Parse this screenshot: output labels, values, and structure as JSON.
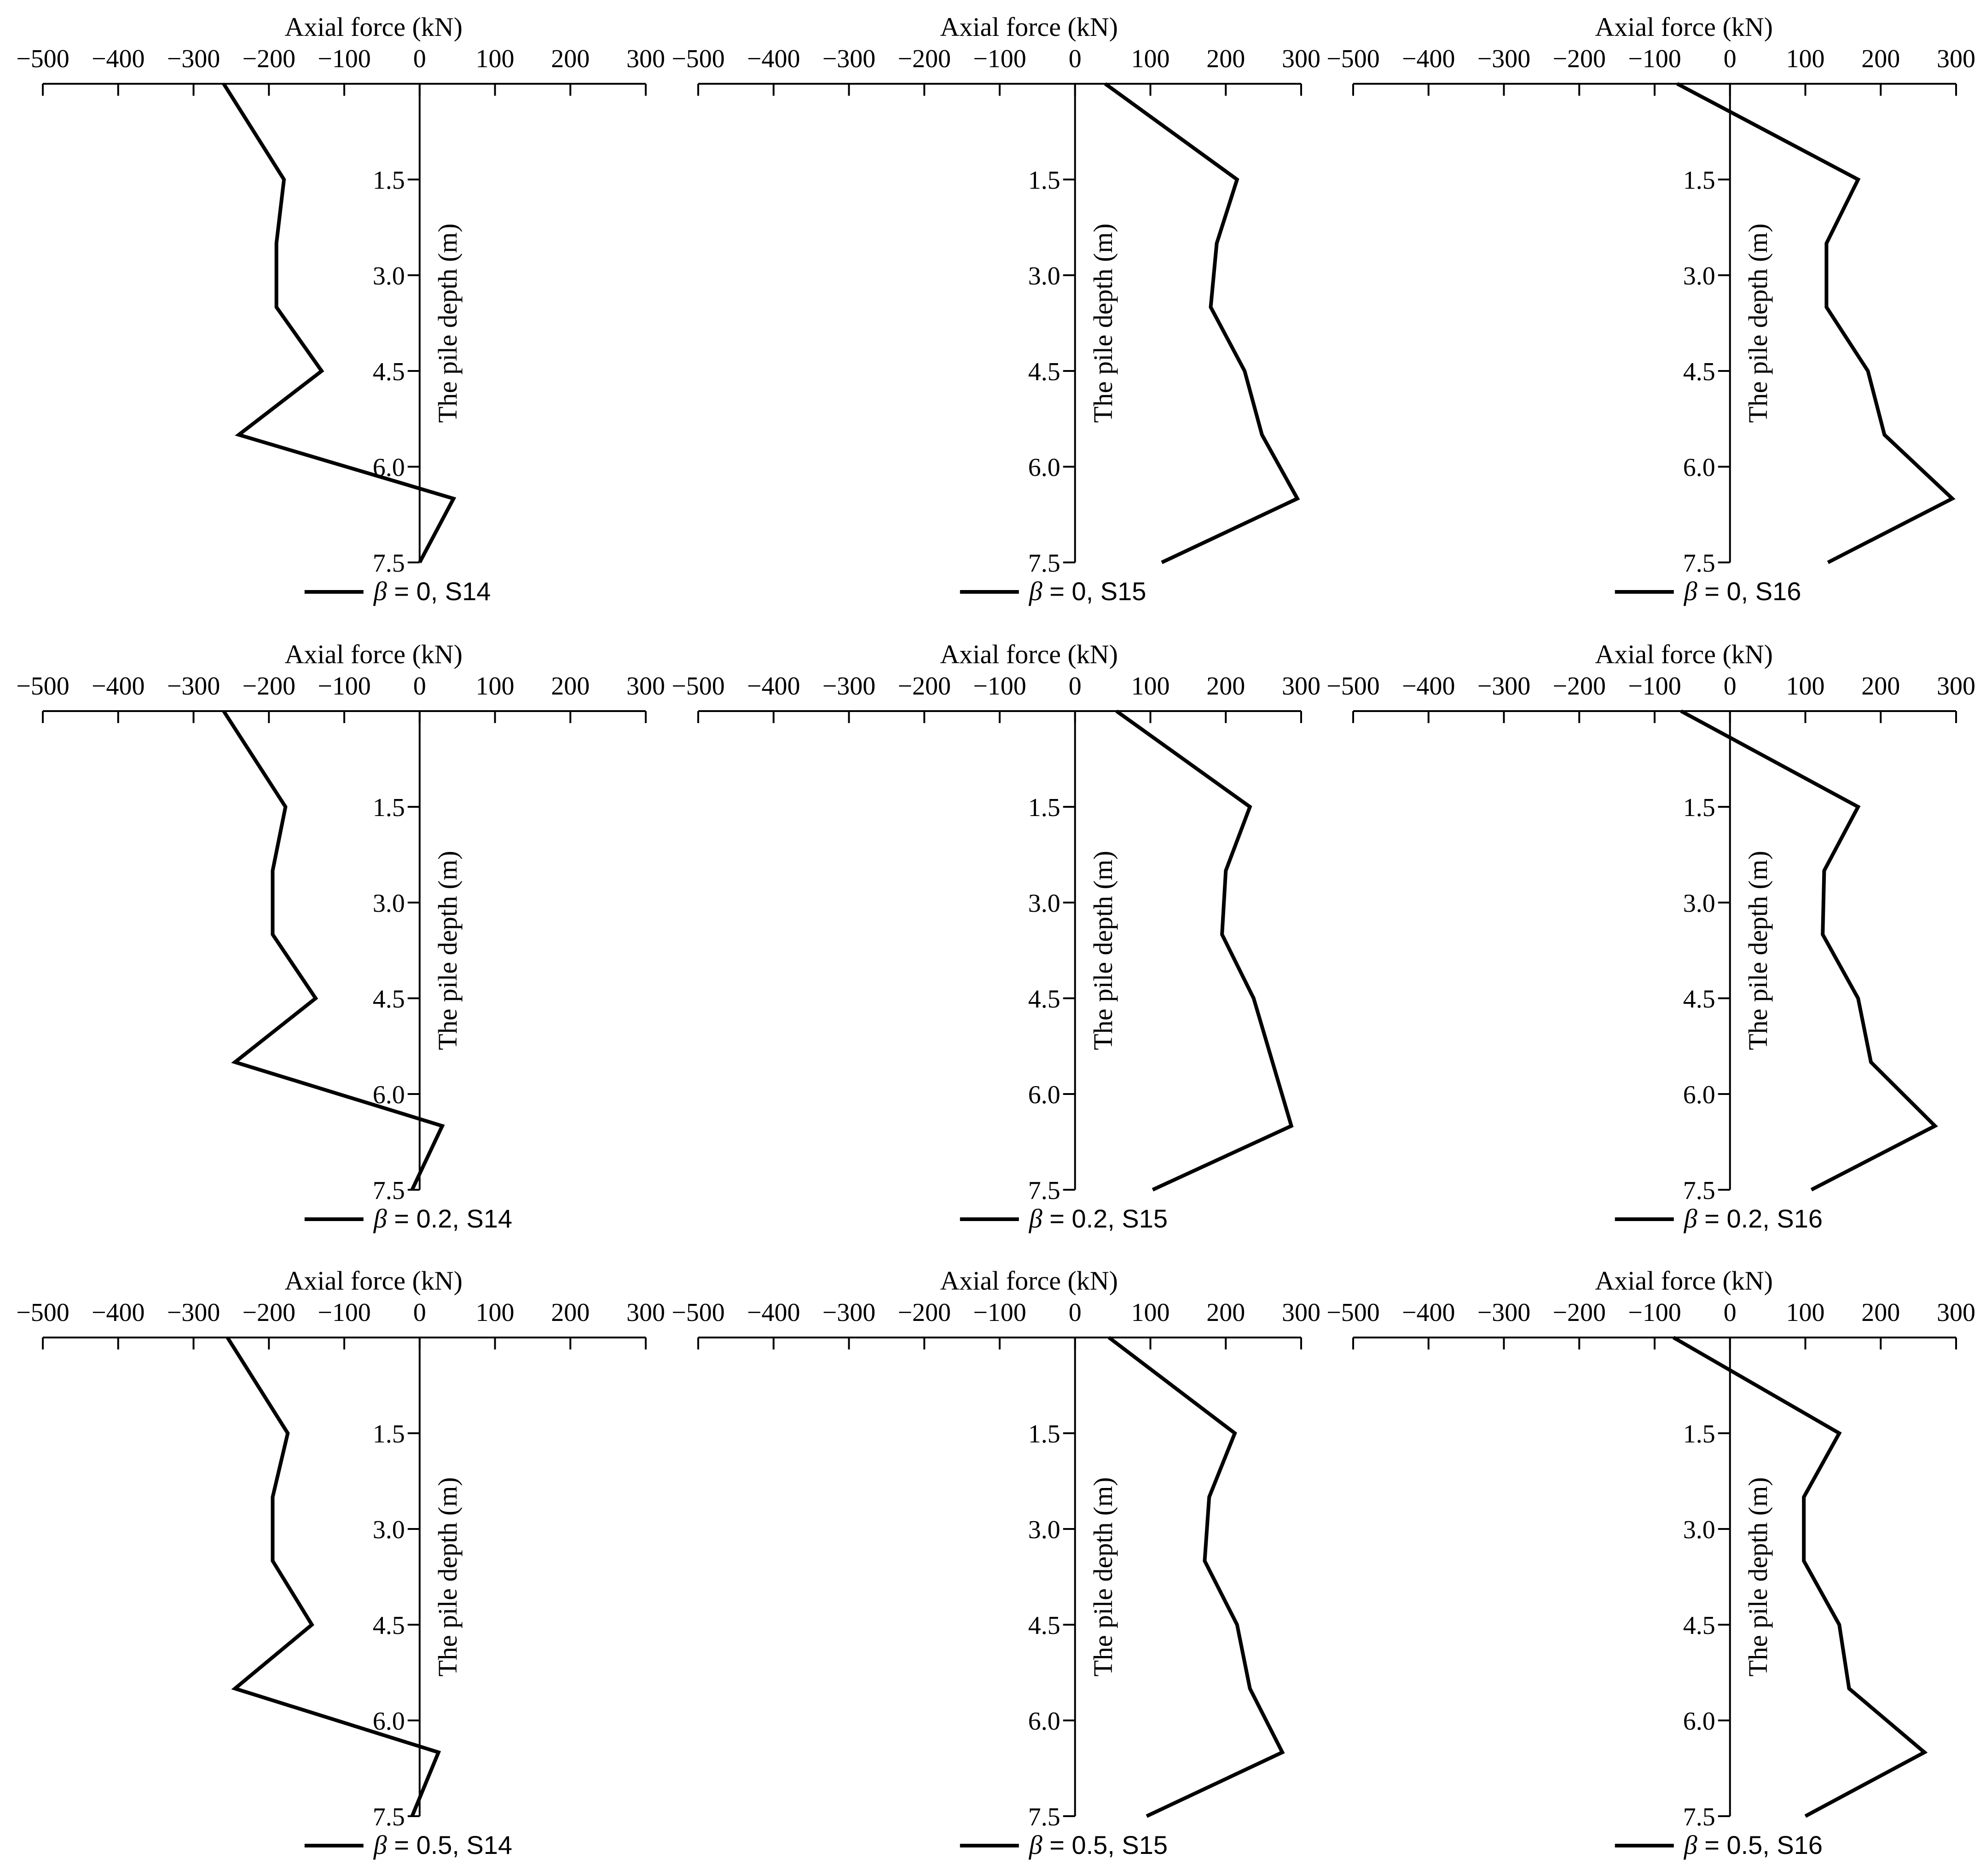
{
  "chart_data": [
    {
      "type": "line",
      "panel": "S14",
      "x_axis": "top",
      "xlabel": "Axial force (kN)",
      "ylabel": "The pile depth (m)",
      "xlim": [
        -500,
        300
      ],
      "ylim": [
        7.5,
        0
      ],
      "x_ticks": [
        -500,
        -400,
        -300,
        -200,
        -100,
        0,
        100,
        200,
        300
      ],
      "x_tick_labels": [
        "−500",
        "−400",
        "−300",
        "−200",
        "−100",
        "0",
        "100",
        "200",
        "300"
      ],
      "y_ticks": [
        1.5,
        3.0,
        4.5,
        6.0,
        7.5
      ],
      "y_tick_labels": [
        "1.5",
        "3.0",
        "4.5",
        "6.0",
        "7.5"
      ],
      "series": [
        {
          "name_beta": "β",
          "name_rest": " = 0, S14",
          "points": [
            {
              "x": -260,
              "y": 0
            },
            {
              "x": -180,
              "y": 1.5
            },
            {
              "x": -190,
              "y": 2.5
            },
            {
              "x": -190,
              "y": 3.5
            },
            {
              "x": -130,
              "y": 4.5
            },
            {
              "x": -240,
              "y": 5.5
            },
            {
              "x": 45,
              "y": 6.5
            },
            {
              "x": 0,
              "y": 7.5
            }
          ]
        }
      ]
    },
    {
      "type": "line",
      "panel": "S15",
      "x_axis": "top",
      "xlabel": "Axial force (kN)",
      "ylabel": "The pile depth (m)",
      "xlim": [
        -500,
        300
      ],
      "ylim": [
        7.5,
        0
      ],
      "x_ticks": [
        -500,
        -400,
        -300,
        -200,
        -100,
        0,
        100,
        200,
        300
      ],
      "x_tick_labels": [
        "−500",
        "−400",
        "−300",
        "−200",
        "−100",
        "0",
        "100",
        "200",
        "300"
      ],
      "y_ticks": [
        1.5,
        3.0,
        4.5,
        6.0,
        7.5
      ],
      "y_tick_labels": [
        "1.5",
        "3.0",
        "4.5",
        "6.0",
        "7.5"
      ],
      "series": [
        {
          "name_beta": "β",
          "name_rest": " = 0, S15",
          "points": [
            {
              "x": 40,
              "y": 0
            },
            {
              "x": 215,
              "y": 1.5
            },
            {
              "x": 188,
              "y": 2.5
            },
            {
              "x": 180,
              "y": 3.5
            },
            {
              "x": 225,
              "y": 4.5
            },
            {
              "x": 248,
              "y": 5.5
            },
            {
              "x": 295,
              "y": 6.5
            },
            {
              "x": 115,
              "y": 7.5
            }
          ]
        }
      ]
    },
    {
      "type": "line",
      "panel": "S16",
      "x_axis": "top",
      "xlabel": "Axial force (kN)",
      "ylabel": "The pile depth (m)",
      "xlim": [
        -500,
        300
      ],
      "ylim": [
        7.5,
        0
      ],
      "x_ticks": [
        -500,
        -400,
        -300,
        -200,
        -100,
        0,
        100,
        200,
        300
      ],
      "x_tick_labels": [
        "−500",
        "−400",
        "−300",
        "−200",
        "−100",
        "0",
        "100",
        "200",
        "300"
      ],
      "y_ticks": [
        1.5,
        3.0,
        4.5,
        6.0,
        7.5
      ],
      "y_tick_labels": [
        "1.5",
        "3.0",
        "4.5",
        "6.0",
        "7.5"
      ],
      "series": [
        {
          "name_beta": "β",
          "name_rest": " = 0, S16",
          "points": [
            {
              "x": -70,
              "y": 0
            },
            {
              "x": 170,
              "y": 1.5
            },
            {
              "x": 128,
              "y": 2.5
            },
            {
              "x": 128,
              "y": 3.5
            },
            {
              "x": 183,
              "y": 4.5
            },
            {
              "x": 205,
              "y": 5.5
            },
            {
              "x": 295,
              "y": 6.5
            },
            {
              "x": 130,
              "y": 7.5
            }
          ]
        }
      ]
    },
    {
      "type": "line",
      "panel": "S14",
      "x_axis": "top",
      "xlabel": "Axial force (kN)",
      "ylabel": "The pile depth (m)",
      "xlim": [
        -500,
        300
      ],
      "ylim": [
        7.5,
        0
      ],
      "x_ticks": [
        -500,
        -400,
        -300,
        -200,
        -100,
        0,
        100,
        200,
        300
      ],
      "x_tick_labels": [
        "−500",
        "−400",
        "−300",
        "−200",
        "−100",
        "0",
        "100",
        "200",
        "300"
      ],
      "y_ticks": [
        1.5,
        3.0,
        4.5,
        6.0,
        7.5
      ],
      "y_tick_labels": [
        "1.5",
        "3.0",
        "4.5",
        "6.0",
        "7.5"
      ],
      "series": [
        {
          "name_beta": "β",
          "name_rest": " = 0.2, S14",
          "points": [
            {
              "x": -260,
              "y": 0
            },
            {
              "x": -178,
              "y": 1.5
            },
            {
              "x": -195,
              "y": 2.5
            },
            {
              "x": -195,
              "y": 3.5
            },
            {
              "x": -138,
              "y": 4.5
            },
            {
              "x": -245,
              "y": 5.5
            },
            {
              "x": 30,
              "y": 6.5
            },
            {
              "x": -10,
              "y": 7.5
            }
          ]
        }
      ]
    },
    {
      "type": "line",
      "panel": "S15",
      "x_axis": "top",
      "xlabel": "Axial force (kN)",
      "ylabel": "The pile depth (m)",
      "xlim": [
        -500,
        300
      ],
      "ylim": [
        7.5,
        0
      ],
      "x_ticks": [
        -500,
        -400,
        -300,
        -200,
        -100,
        0,
        100,
        200,
        300
      ],
      "x_tick_labels": [
        "−500",
        "−400",
        "−300",
        "−200",
        "−100",
        "0",
        "100",
        "200",
        "300"
      ],
      "y_ticks": [
        1.5,
        3.0,
        4.5,
        6.0,
        7.5
      ],
      "y_tick_labels": [
        "1.5",
        "3.0",
        "4.5",
        "6.0",
        "7.5"
      ],
      "series": [
        {
          "name_beta": "β",
          "name_rest": " = 0.2, S15",
          "points": [
            {
              "x": 55,
              "y": 0
            },
            {
              "x": 232,
              "y": 1.5
            },
            {
              "x": 200,
              "y": 2.5
            },
            {
              "x": 195,
              "y": 3.5
            },
            {
              "x": 237,
              "y": 4.5
            },
            {
              "x": 262,
              "y": 5.5
            },
            {
              "x": 287,
              "y": 6.5
            },
            {
              "x": 103,
              "y": 7.5
            }
          ]
        }
      ]
    },
    {
      "type": "line",
      "panel": "S16",
      "x_axis": "top",
      "xlabel": "Axial force (kN)",
      "ylabel": "The pile depth (m)",
      "xlim": [
        -500,
        300
      ],
      "ylim": [
        7.5,
        0
      ],
      "x_ticks": [
        -500,
        -400,
        -300,
        -200,
        -100,
        0,
        100,
        200,
        300
      ],
      "x_tick_labels": [
        "−500",
        "−400",
        "−300",
        "−200",
        "−100",
        "0",
        "100",
        "200",
        "300"
      ],
      "y_ticks": [
        1.5,
        3.0,
        4.5,
        6.0,
        7.5
      ],
      "y_tick_labels": [
        "1.5",
        "3.0",
        "4.5",
        "6.0",
        "7.5"
      ],
      "series": [
        {
          "name_beta": "β",
          "name_rest": " = 0.2, S16",
          "points": [
            {
              "x": -65,
              "y": 0
            },
            {
              "x": 170,
              "y": 1.5
            },
            {
              "x": 125,
              "y": 2.5
            },
            {
              "x": 123,
              "y": 3.5
            },
            {
              "x": 170,
              "y": 4.5
            },
            {
              "x": 187,
              "y": 5.5
            },
            {
              "x": 272,
              "y": 6.5
            },
            {
              "x": 108,
              "y": 7.5
            }
          ]
        }
      ]
    },
    {
      "type": "line",
      "panel": "S14",
      "x_axis": "top",
      "xlabel": "Axial force (kN)",
      "ylabel": "The pile depth (m)",
      "xlim": [
        -500,
        300
      ],
      "ylim": [
        7.5,
        0
      ],
      "x_ticks": [
        -500,
        -400,
        -300,
        -200,
        -100,
        0,
        100,
        200,
        300
      ],
      "x_tick_labels": [
        "−500",
        "−400",
        "−300",
        "−200",
        "−100",
        "0",
        "100",
        "200",
        "300"
      ],
      "y_ticks": [
        1.5,
        3.0,
        4.5,
        6.0,
        7.5
      ],
      "y_tick_labels": [
        "1.5",
        "3.0",
        "4.5",
        "6.0",
        "7.5"
      ],
      "series": [
        {
          "name_beta": "β",
          "name_rest": " = 0.5, S14",
          "points": [
            {
              "x": -255,
              "y": 0
            },
            {
              "x": -175,
              "y": 1.5
            },
            {
              "x": -195,
              "y": 2.5
            },
            {
              "x": -195,
              "y": 3.5
            },
            {
              "x": -143,
              "y": 4.5
            },
            {
              "x": -245,
              "y": 5.5
            },
            {
              "x": 25,
              "y": 6.5
            },
            {
              "x": -10,
              "y": 7.5
            }
          ]
        }
      ]
    },
    {
      "type": "line",
      "panel": "S15",
      "x_axis": "top",
      "xlabel": "Axial force (kN)",
      "ylabel": "The pile depth (m)",
      "xlim": [
        -500,
        300
      ],
      "ylim": [
        7.5,
        0
      ],
      "x_ticks": [
        -500,
        -400,
        -300,
        -200,
        -100,
        0,
        100,
        200,
        300
      ],
      "x_tick_labels": [
        "−500",
        "−400",
        "−300",
        "−200",
        "−100",
        "0",
        "100",
        "200",
        "300"
      ],
      "y_ticks": [
        1.5,
        3.0,
        4.5,
        6.0,
        7.5
      ],
      "y_tick_labels": [
        "1.5",
        "3.0",
        "4.5",
        "6.0",
        "7.5"
      ],
      "series": [
        {
          "name_beta": "β",
          "name_rest": " = 0.5, S15",
          "points": [
            {
              "x": 45,
              "y": 0
            },
            {
              "x": 212,
              "y": 1.5
            },
            {
              "x": 178,
              "y": 2.5
            },
            {
              "x": 172,
              "y": 3.5
            },
            {
              "x": 215,
              "y": 4.5
            },
            {
              "x": 232,
              "y": 5.5
            },
            {
              "x": 275,
              "y": 6.5
            },
            {
              "x": 95,
              "y": 7.5
            }
          ]
        }
      ]
    },
    {
      "type": "line",
      "panel": "S16",
      "x_axis": "top",
      "xlabel": "Axial force (kN)",
      "ylabel": "The pile depth (m)",
      "xlim": [
        -500,
        300
      ],
      "ylim": [
        7.5,
        0
      ],
      "x_ticks": [
        -500,
        -400,
        -300,
        -200,
        -100,
        0,
        100,
        200,
        300
      ],
      "x_tick_labels": [
        "−500",
        "−400",
        "−300",
        "−200",
        "−100",
        "0",
        "100",
        "200",
        "300"
      ],
      "y_ticks": [
        1.5,
        3.0,
        4.5,
        6.0,
        7.5
      ],
      "y_tick_labels": [
        "1.5",
        "3.0",
        "4.5",
        "6.0",
        "7.5"
      ],
      "series": [
        {
          "name_beta": "β",
          "name_rest": " = 0.5, S16",
          "points": [
            {
              "x": -75,
              "y": 0
            },
            {
              "x": 145,
              "y": 1.5
            },
            {
              "x": 98,
              "y": 2.5
            },
            {
              "x": 98,
              "y": 3.5
            },
            {
              "x": 145,
              "y": 4.5
            },
            {
              "x": 158,
              "y": 5.5
            },
            {
              "x": 258,
              "y": 6.5
            },
            {
              "x": 100,
              "y": 7.5
            }
          ]
        }
      ]
    }
  ]
}
